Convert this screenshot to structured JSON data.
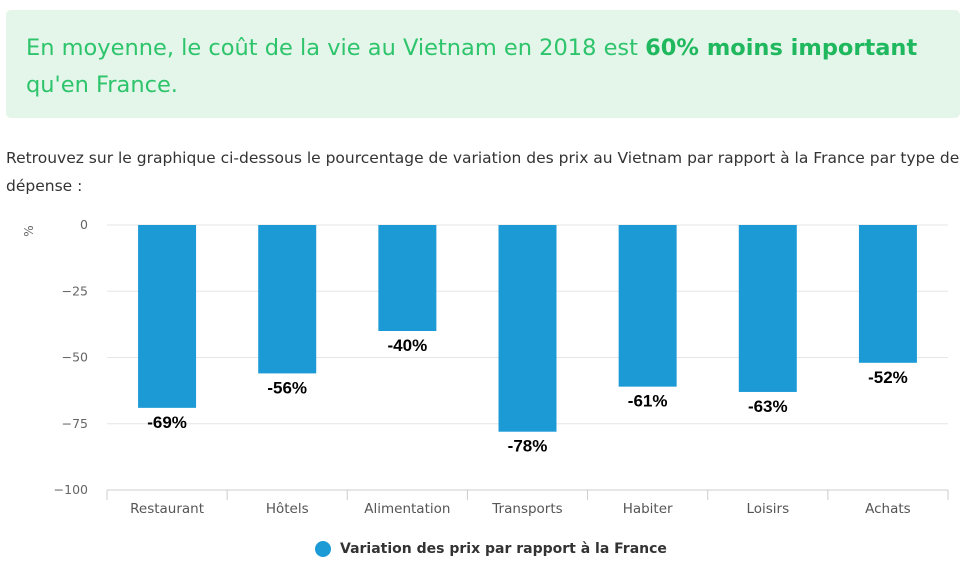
{
  "callout": {
    "text_before": "En moyenne, le coût de la vie au Vietnam en 2018 est ",
    "text_bold": "60% moins important",
    "text_after": " qu'en France."
  },
  "intro": "Retrouvez sur le graphique ci-dessous le pourcentage de variation des prix au Vietnam par rapport à la France par type de dépense :",
  "colors": {
    "bar": "#1b9ad6",
    "callout_bg": "#e3f6e9",
    "callout_text": "#2ec46c"
  },
  "chart_data": {
    "type": "bar",
    "title": "",
    "xlabel": "",
    "ylabel": "%",
    "ylim": [
      -100,
      0
    ],
    "yticks": [
      0,
      -25,
      -50,
      -75,
      -100
    ],
    "ytick_labels": [
      "0",
      "−25",
      "−50",
      "−75",
      "−100"
    ],
    "grid": true,
    "legend": "bottom-center",
    "categories": [
      "Restaurant",
      "Hôtels",
      "Alimentation",
      "Transports",
      "Habiter",
      "Loisirs",
      "Achats"
    ],
    "series": [
      {
        "name": "Variation des prix par rapport à la France",
        "values": [
          -69,
          -56,
          -40,
          -78,
          -61,
          -63,
          -52
        ],
        "labels": [
          "-69%",
          "-56%",
          "-40%",
          "-78%",
          "-61%",
          "-63%",
          "-52%"
        ]
      }
    ]
  }
}
